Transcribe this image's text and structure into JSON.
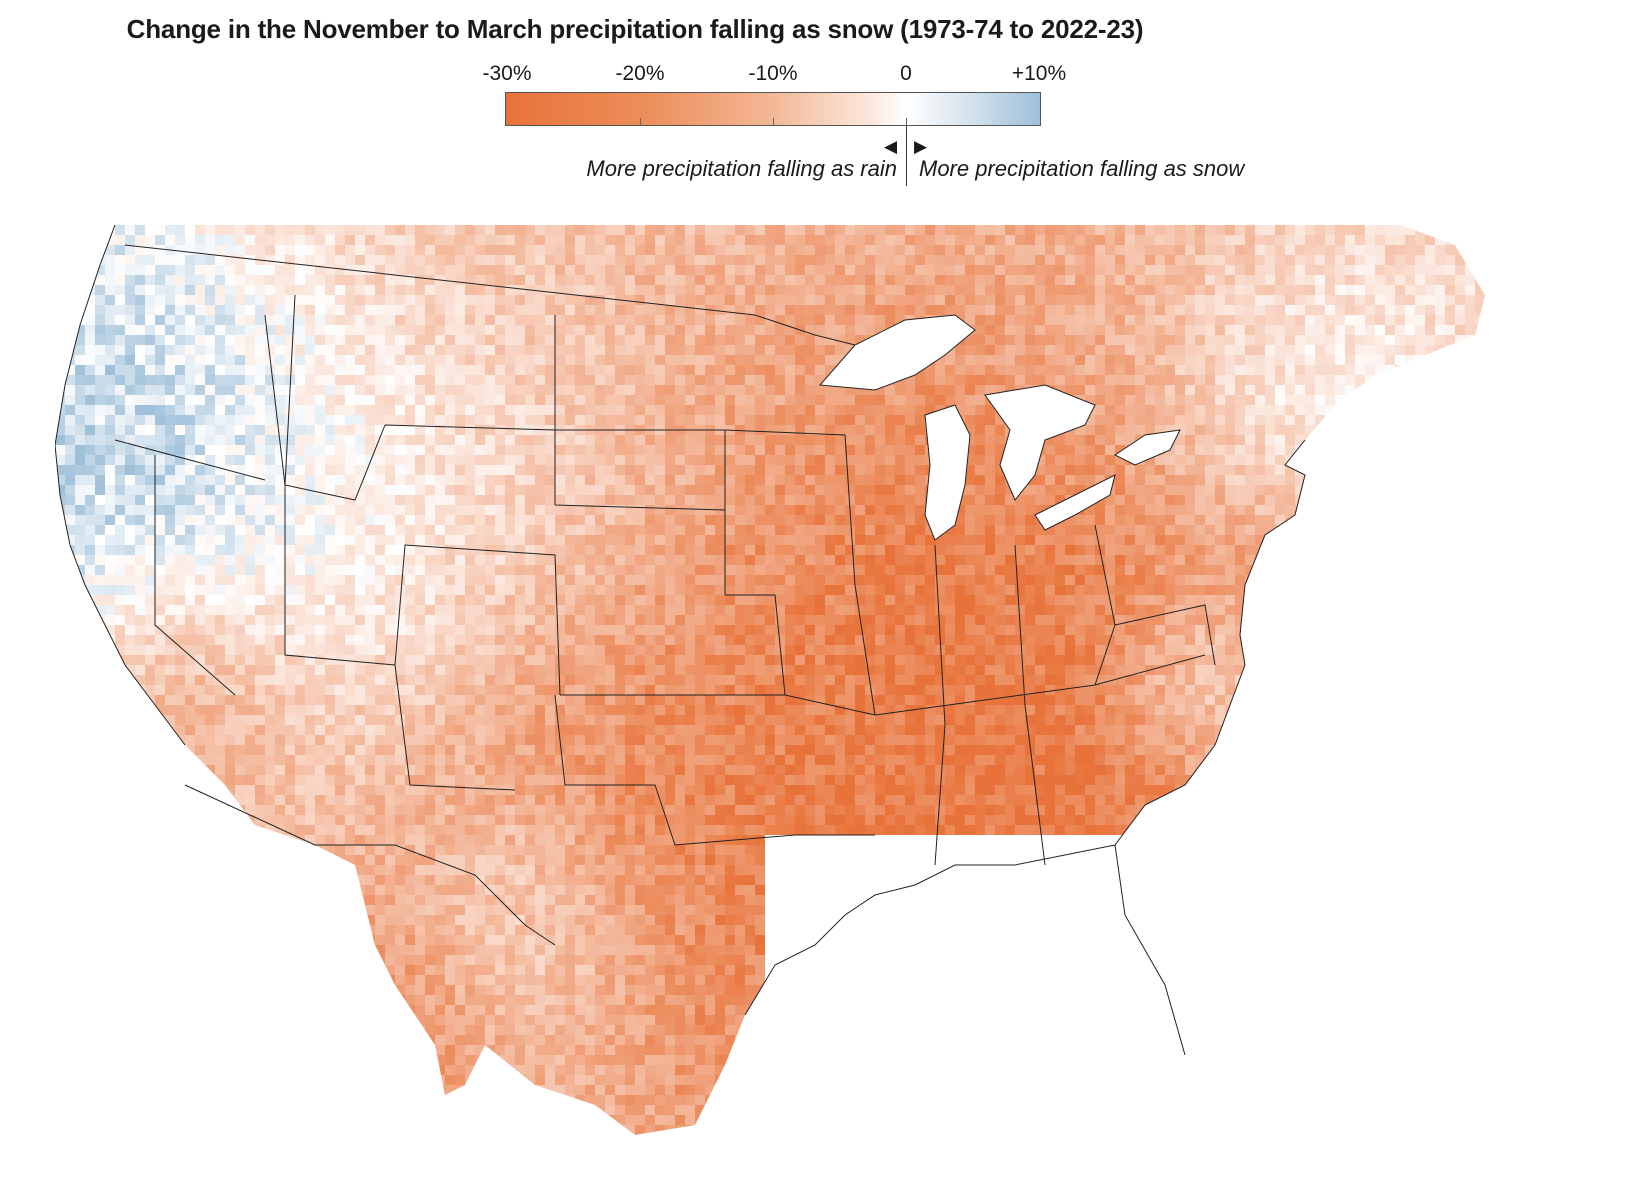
{
  "title": "Change in the November to March precipitation falling as snow (1973-74 to 2022-23)",
  "legend": {
    "ticks": [
      "-30%",
      "-20%",
      "-10%",
      "0",
      "+10%"
    ],
    "rain_label": "More precipitation falling as rain",
    "snow_label": "More precipitation falling as snow",
    "scale_min": -30,
    "scale_max": 10,
    "colors": {
      "strong_rain": "#e8733a",
      "neutral": "#ffffff",
      "strong_snow": "#9fc0d9"
    }
  },
  "map": {
    "icons": [
      "map-of-united-states-and-southern-canada",
      "pixel-heatmap-overlay"
    ],
    "colors": {
      "border": "#222222",
      "land": "#ffffff"
    }
  }
}
